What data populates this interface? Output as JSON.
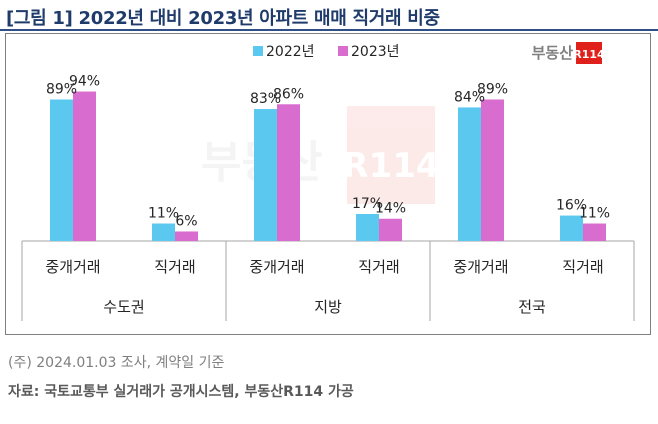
{
  "title": "[그림 1] 2022년 대비 2023년 아파트 매매 직거래 비중",
  "logo": {
    "text": "부동산",
    "badge": "R114"
  },
  "watermark": {
    "text": "부동산",
    "badge": "R114"
  },
  "footer": {
    "note": "(주) 2024.01.03 조사, 계약일 기준",
    "source": "자료: 국토교통부 실거래가 공개시스템, 부동산R114 가공"
  },
  "colors": {
    "2022": "#5bc8f0",
    "2023": "#d96ccf",
    "title": "#1f3b6b",
    "axis": "#a6a6a6"
  },
  "chart_data": {
    "type": "bar",
    "title": "",
    "xlabel": "",
    "ylabel": "",
    "ylim": [
      0,
      100
    ],
    "grid": false,
    "legend": "top-center",
    "value_suffix": "%",
    "groups": [
      {
        "label": "수도권",
        "categories": [
          "중개거래",
          "직거래"
        ]
      },
      {
        "label": "지방",
        "categories": [
          "중개거래",
          "직거래"
        ]
      },
      {
        "label": "전국",
        "categories": [
          "중개거래",
          "직거래"
        ]
      }
    ],
    "series": [
      {
        "name": "2022년",
        "values": [
          89,
          11,
          83,
          17,
          84,
          16
        ]
      },
      {
        "name": "2023년",
        "values": [
          94,
          6,
          86,
          14,
          89,
          11
        ]
      }
    ]
  }
}
